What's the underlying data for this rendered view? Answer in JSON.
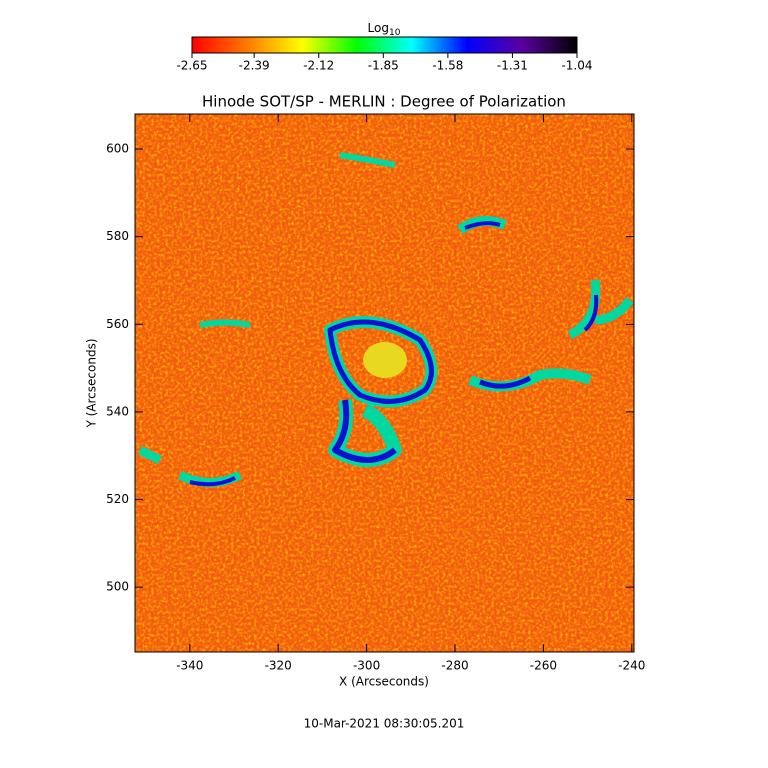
{
  "chart_data": {
    "type": "heatmap",
    "title": "Hinode SOT/SP - MERLIN : Degree of Polarization",
    "x_label": "X (Arcseconds)",
    "y_label": "Y (Arcseconds)",
    "footer": "10-Mar-2021 08:30:05.201",
    "xlim": [
      -352.4,
      -239.5
    ],
    "ylim": [
      485.2,
      608
    ],
    "xticks": [
      -340,
      -320,
      -300,
      -280,
      -260,
      -240
    ],
    "yticks": [
      500,
      520,
      540,
      560,
      580,
      600
    ],
    "colorbar": {
      "label": "Log",
      "label_sub": "10",
      "lim": [
        -2.65,
        -1.04
      ],
      "ticks": [
        -2.65,
        -2.39,
        -2.12,
        -1.85,
        -1.58,
        -1.31,
        -1.04
      ],
      "colormap": [
        "#ff0000",
        "#ff7a00",
        "#ffff00",
        "#00ff00",
        "#00ffff",
        "#0000ff",
        "#5a00a0",
        "#000000"
      ]
    }
  }
}
